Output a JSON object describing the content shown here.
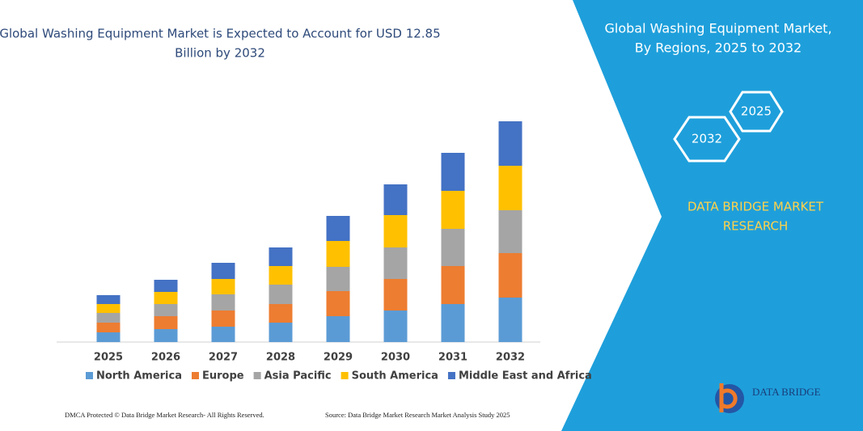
{
  "chart_data": {
    "type": "stacked_bar",
    "title": [
      "Global Washing Equipment Market is Expected to Account for USD 12.85",
      "Billion by 2032"
    ],
    "categories": [
      "2025",
      "2026",
      "2027",
      "2028",
      "2029",
      "2030",
      "2031",
      "2032"
    ],
    "series": [
      {
        "name": "North America",
        "color": "#5b9bd5",
        "values": [
          12,
          16,
          19,
          24,
          32,
          39,
          47,
          55
        ]
      },
      {
        "name": "Europe",
        "color": "#ed7d31",
        "values": [
          12,
          16,
          20,
          23,
          31,
          39,
          47,
          55
        ]
      },
      {
        "name": "Asia Pacific",
        "color": "#a5a5a5",
        "values": [
          12,
          15,
          20,
          24,
          30,
          39,
          46,
          53
        ]
      },
      {
        "name": "South America",
        "color": "#ffc000",
        "values": [
          11,
          15,
          19,
          23,
          32,
          40,
          47,
          55
        ]
      },
      {
        "name": "Middle East and Africa",
        "color": "#4472c4",
        "values": [
          11,
          15,
          20,
          23,
          31,
          38,
          47,
          55
        ]
      }
    ]
  },
  "panel": {
    "title": [
      "Global Washing Equipment Market,",
      "By Regions, 2025 to 2032"
    ],
    "hex_start": "2025",
    "hex_end": "2032",
    "brand": [
      "DATA BRIDGE MARKET",
      "RESEARCH"
    ],
    "logo": "DATA BRIDGE"
  },
  "footer": {
    "left": "DMCA Protected © Data Bridge Market Research- All Rights Reserved.",
    "right": "Source: Data Bridge Market Research Market Analysis Study 2025"
  }
}
